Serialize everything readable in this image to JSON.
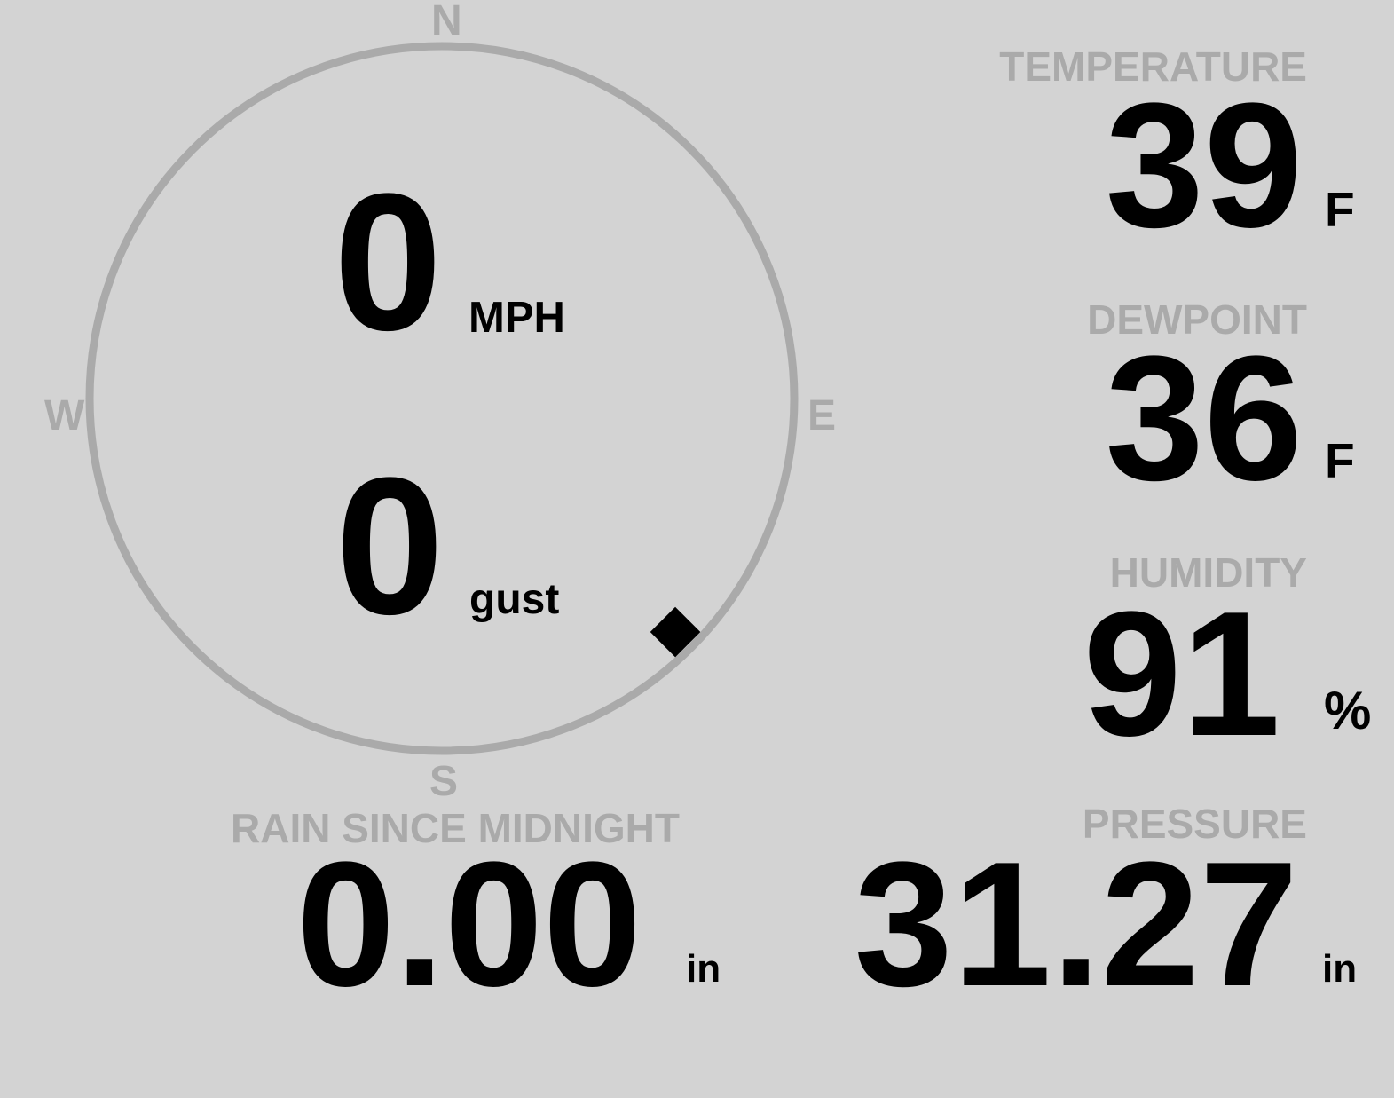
{
  "colors": {
    "background": "#d3d3d3",
    "label": "#aaaaaa",
    "value": "#000000",
    "ring": "#aaaaaa",
    "pointer": "#000000"
  },
  "compass": {
    "n": "N",
    "e": "E",
    "s": "S",
    "w": "W",
    "wind_direction_deg": 135,
    "pointer_icon": "diamond"
  },
  "wind": {
    "speed": "0",
    "speed_unit": "MPH",
    "gust": "0",
    "gust_unit": "gust"
  },
  "temperature": {
    "label": "TEMPERATURE",
    "value": "39",
    "unit": "F"
  },
  "dewpoint": {
    "label": "DEWPOINT",
    "value": "36",
    "unit": "F"
  },
  "humidity": {
    "label": "HUMIDITY",
    "value": "91",
    "unit": "%"
  },
  "rain": {
    "label": "RAIN SINCE MIDNIGHT",
    "value": "0.00",
    "unit": "in"
  },
  "pressure": {
    "label": "PRESSURE",
    "value": "31.27",
    "unit": "in"
  }
}
